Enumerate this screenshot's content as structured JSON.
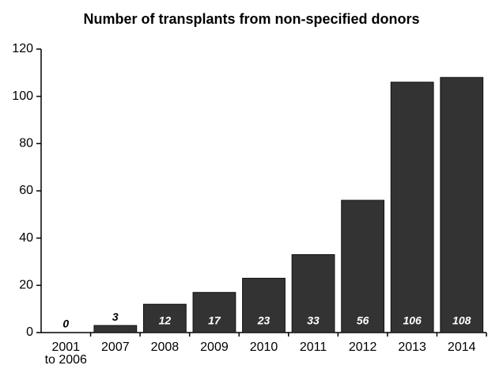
{
  "chart_data": {
    "type": "bar",
    "title": "Number of transplants from non-specified donors",
    "categories": [
      "2001\nto 2006",
      "2007",
      "2008",
      "2009",
      "2010",
      "2011",
      "2012",
      "2013",
      "2014"
    ],
    "values": [
      0,
      3,
      12,
      17,
      23,
      33,
      56,
      106,
      108
    ],
    "color": "#333333",
    "ylim": [
      0,
      120
    ],
    "yticks": [
      0,
      20,
      40,
      60,
      80,
      100,
      120
    ],
    "grid": false
  }
}
